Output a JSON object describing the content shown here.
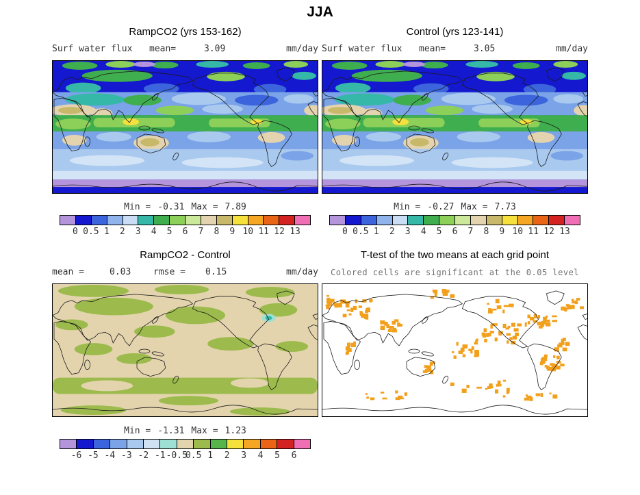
{
  "figure": {
    "title": "JJA"
  },
  "panels": {
    "ramp": {
      "title": "RampCO2 (yrs 153-162)",
      "field": "Surf water flux",
      "mean_label": "mean=",
      "mean_value": "3.09",
      "units": "mm/day",
      "min_label": "Min =",
      "min_value": "-0.31",
      "max_label": "Max =",
      "max_value": "7.89"
    },
    "control": {
      "title": "Control (yrs 123-141)",
      "field": "Surf water flux",
      "mean_label": "mean=",
      "mean_value": "3.05",
      "units": "mm/day",
      "min_label": "Min =",
      "min_value": "-0.27",
      "max_label": "Max =",
      "max_value": "7.73"
    },
    "diff": {
      "title": "RampCO2 - Control",
      "mean_label": "mean =",
      "mean_value": "0.03",
      "rmse_label": "rmse =",
      "rmse_value": "0.15",
      "units": "mm/day",
      "min_label": "Min =",
      "min_value": "-1.31",
      "max_label": "Max =",
      "max_value": "1.23"
    },
    "ttest": {
      "title": "T-test of the two means at each grid point",
      "subtitle": "Colored cells are significant at the 0.05 level",
      "sig_color": "#f2a01c"
    }
  },
  "colorbars": {
    "flux": {
      "ticks": [
        "0",
        "0.5",
        "1",
        "2",
        "3",
        "4",
        "5",
        "6",
        "7",
        "8",
        "9",
        "10",
        "11",
        "12",
        "13"
      ],
      "colors": [
        "#b495dc",
        "#1418cf",
        "#3b64dd",
        "#8fb3ea",
        "#c9def4",
        "#35b8a8",
        "#3fae4e",
        "#8cd05a",
        "#cce89a",
        "#e3d3ae",
        "#c8b86a",
        "#f5e03c",
        "#f5a623",
        "#ea6418",
        "#d42222",
        "#f06eb4"
      ]
    },
    "diff": {
      "ticks": [
        "-6",
        "-5",
        "-4",
        "-3",
        "-2",
        "-1",
        "-0.5",
        "0.5",
        "1",
        "2",
        "3",
        "4",
        "5",
        "6"
      ],
      "colors": [
        "#b495dc",
        "#1418cf",
        "#3b64dd",
        "#7aa3e8",
        "#a9c9ef",
        "#cfe2f4",
        "#9fe0d4",
        "#e3d4ae",
        "#9cbb4c",
        "#55b44a",
        "#f5e03c",
        "#f5a623",
        "#ea6418",
        "#d42222",
        "#f06eb4"
      ]
    }
  },
  "chart_data": [
    {
      "type": "heatmap",
      "subtype": "filled-contour global map",
      "season": "JJA",
      "title": "RampCO2 (yrs 153-162)",
      "variable": "Surf water flux",
      "units": "mm/day",
      "mean": 3.09,
      "min": -0.31,
      "max": 7.89,
      "contour_levels": [
        0,
        0.5,
        1,
        2,
        3,
        4,
        5,
        6,
        7,
        8,
        9,
        10,
        11,
        12,
        13
      ],
      "legend_position": "below"
    },
    {
      "type": "heatmap",
      "subtype": "filled-contour global map",
      "season": "JJA",
      "title": "Control (yrs 123-141)",
      "variable": "Surf water flux",
      "units": "mm/day",
      "mean": 3.05,
      "min": -0.27,
      "max": 7.73,
      "contour_levels": [
        0,
        0.5,
        1,
        2,
        3,
        4,
        5,
        6,
        7,
        8,
        9,
        10,
        11,
        12,
        13
      ],
      "legend_position": "below"
    },
    {
      "type": "heatmap",
      "subtype": "filled-contour global difference map",
      "season": "JJA",
      "title": "RampCO2 - Control",
      "units": "mm/day",
      "mean": 0.03,
      "rmse": 0.15,
      "min": -1.31,
      "max": 1.23,
      "contour_levels": [
        -6,
        -5,
        -4,
        -3,
        -2,
        -1,
        -0.5,
        0.5,
        1,
        2,
        3,
        4,
        5,
        6
      ],
      "legend_position": "below"
    },
    {
      "type": "heatmap",
      "subtype": "significance-mask global map",
      "season": "JJA",
      "title": "T-test of the two means at each grid point",
      "note": "Colored cells are significant at the 0.05 level",
      "significance_level": 0.05
    }
  ]
}
